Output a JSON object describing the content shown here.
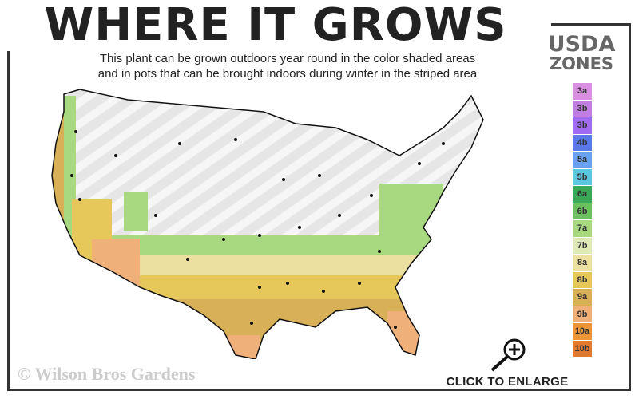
{
  "header": {
    "title": "WHERE IT GROWS",
    "subtitle_line1": "This plant can be grown outdoors year round in the color shaded areas",
    "subtitle_line2": "and in pots that can be brought indoors during winter in the striped area"
  },
  "legend": {
    "title_line1": "USDA",
    "title_line2": "ZONES",
    "zones": [
      {
        "label": "3a",
        "color": "#d98fe0"
      },
      {
        "label": "3b",
        "color": "#c07fe0"
      },
      {
        "label": "3b",
        "color": "#a06bf0"
      },
      {
        "label": "4b",
        "color": "#5a78e8"
      },
      {
        "label": "5a",
        "color": "#6aa0f0"
      },
      {
        "label": "5b",
        "color": "#5cc8e0"
      },
      {
        "label": "6a",
        "color": "#3aa858"
      },
      {
        "label": "6b",
        "color": "#6cc060"
      },
      {
        "label": "7a",
        "color": "#a8d880"
      },
      {
        "label": "7b",
        "color": "#e0eab8"
      },
      {
        "label": "8a",
        "color": "#ece0a0"
      },
      {
        "label": "8b",
        "color": "#e6c85a"
      },
      {
        "label": "9a",
        "color": "#d8b058"
      },
      {
        "label": "9b",
        "color": "#f0b07a"
      },
      {
        "label": "10a",
        "color": "#ec9438"
      },
      {
        "label": "10b",
        "color": "#e07a30"
      }
    ]
  },
  "footer": {
    "copyright": "© Wilson Bros Gardens",
    "enlarge_label": "CLICK TO ENLARGE"
  },
  "icons": {
    "enlarge": "magnifier-plus-icon"
  }
}
